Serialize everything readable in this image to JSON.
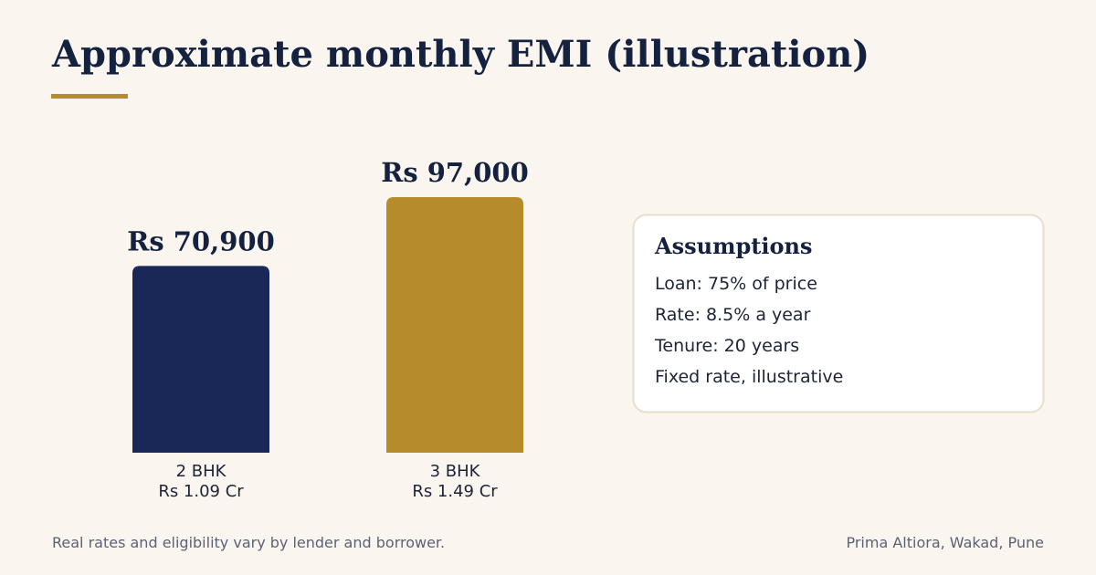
{
  "chart_data": {
    "type": "bar",
    "title": "Approximate monthly EMI (illustration)",
    "categories": [
      "2 BHK",
      "3 BHK"
    ],
    "category_notes": [
      "Rs 1.09 Cr",
      "Rs 1.49 Cr"
    ],
    "values": [
      70900,
      97000
    ],
    "value_labels": [
      "Rs 70,900",
      "Rs 97,000"
    ],
    "colors": [
      "#1a2857",
      "#b58b2b"
    ],
    "assumptions": {
      "title": "Assumptions",
      "items": [
        "Loan: 75% of price",
        "Rate: 8.5% a year",
        "Tenure: 20 years",
        "Fixed rate, illustrative"
      ]
    },
    "note": "Real rates and eligibility vary by lender and borrower.",
    "source": "Prima Altiora, Wakad, Pune"
  }
}
